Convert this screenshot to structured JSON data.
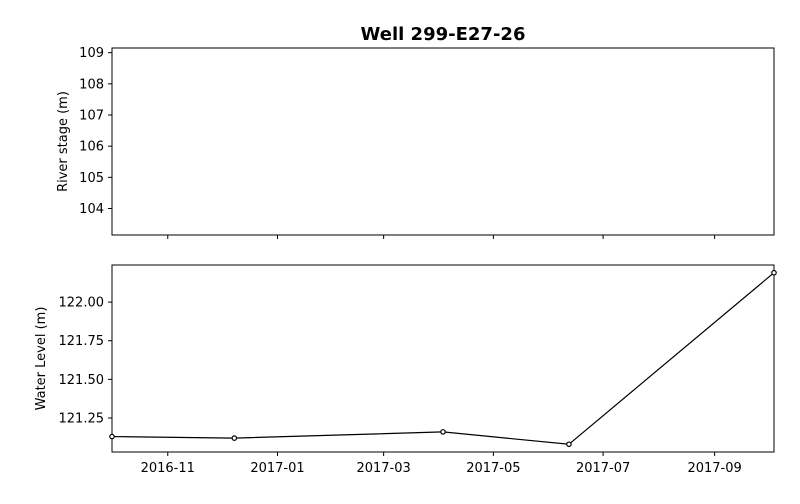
{
  "chart_data": [
    {
      "type": "line",
      "title": "Well 299-E27-26",
      "ylabel": "River stage (m)",
      "xlabel": "",
      "ylim": [
        103.15,
        109.15
      ],
      "yticks": [
        "104",
        "105",
        "106",
        "107",
        "108",
        "109"
      ],
      "ytick_values": [
        104,
        105,
        106,
        107,
        108,
        109
      ],
      "series": []
    },
    {
      "type": "line",
      "title": "",
      "ylabel": "Water Level (m)",
      "xlabel": "",
      "xlim": [
        "2016-10-01",
        "2017-10-04"
      ],
      "ylim": [
        121.03,
        122.24
      ],
      "yticks": [
        "121.25",
        "121.50",
        "121.75",
        "122.00"
      ],
      "ytick_values": [
        121.25,
        121.5,
        121.75,
        122.0
      ],
      "xticks": [
        "2016-11",
        "2017-01",
        "2017-03",
        "2017-05",
        "2017-07",
        "2017-09"
      ],
      "xtick_dates": [
        "2016-11-01",
        "2017-01-01",
        "2017-03-01",
        "2017-05-01",
        "2017-07-01",
        "2017-09-01"
      ],
      "series": [
        {
          "color": "#000000",
          "marker": "circle",
          "x": [
            "2016-10-01",
            "2016-12-08",
            "2017-04-03",
            "2017-06-12",
            "2017-10-04"
          ],
          "y": [
            121.13,
            121.12,
            121.16,
            121.08,
            122.19
          ]
        }
      ]
    }
  ]
}
